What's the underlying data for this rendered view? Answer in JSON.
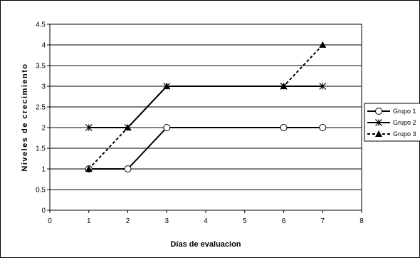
{
  "chart_data": {
    "type": "line",
    "title": "",
    "xlabel": "Días de evaluacion",
    "ylabel": "Niveles de crecimiento",
    "xlim": [
      0,
      8
    ],
    "ylim": [
      0,
      4.5
    ],
    "x_ticks": [
      "0",
      "1",
      "2",
      "3",
      "4",
      "5",
      "6",
      "7",
      "8"
    ],
    "y_ticks": [
      "0",
      "0.5",
      "1",
      "1.5",
      "2",
      "2.5",
      "3",
      "3.5",
      "4",
      "4.5"
    ],
    "grid": "horizontal",
    "legend_position": "right",
    "series": [
      {
        "name": "Grupo 1",
        "marker": "open-circle",
        "line": "solid",
        "color": "#000000",
        "x": [
          1,
          2,
          3,
          6,
          7
        ],
        "y": [
          1,
          1,
          2,
          2,
          2
        ]
      },
      {
        "name": "Grupo 2",
        "marker": "asterisk",
        "line": "solid",
        "color": "#000000",
        "x": [
          1,
          2,
          3,
          6,
          7
        ],
        "y": [
          2,
          2,
          3,
          3,
          3
        ]
      },
      {
        "name": "Grupo 3",
        "marker": "filled-triangle",
        "line": "dashed",
        "color": "#000000",
        "x": [
          1,
          2,
          3,
          6,
          7
        ],
        "y": [
          1,
          2,
          3,
          3,
          4
        ]
      }
    ]
  }
}
